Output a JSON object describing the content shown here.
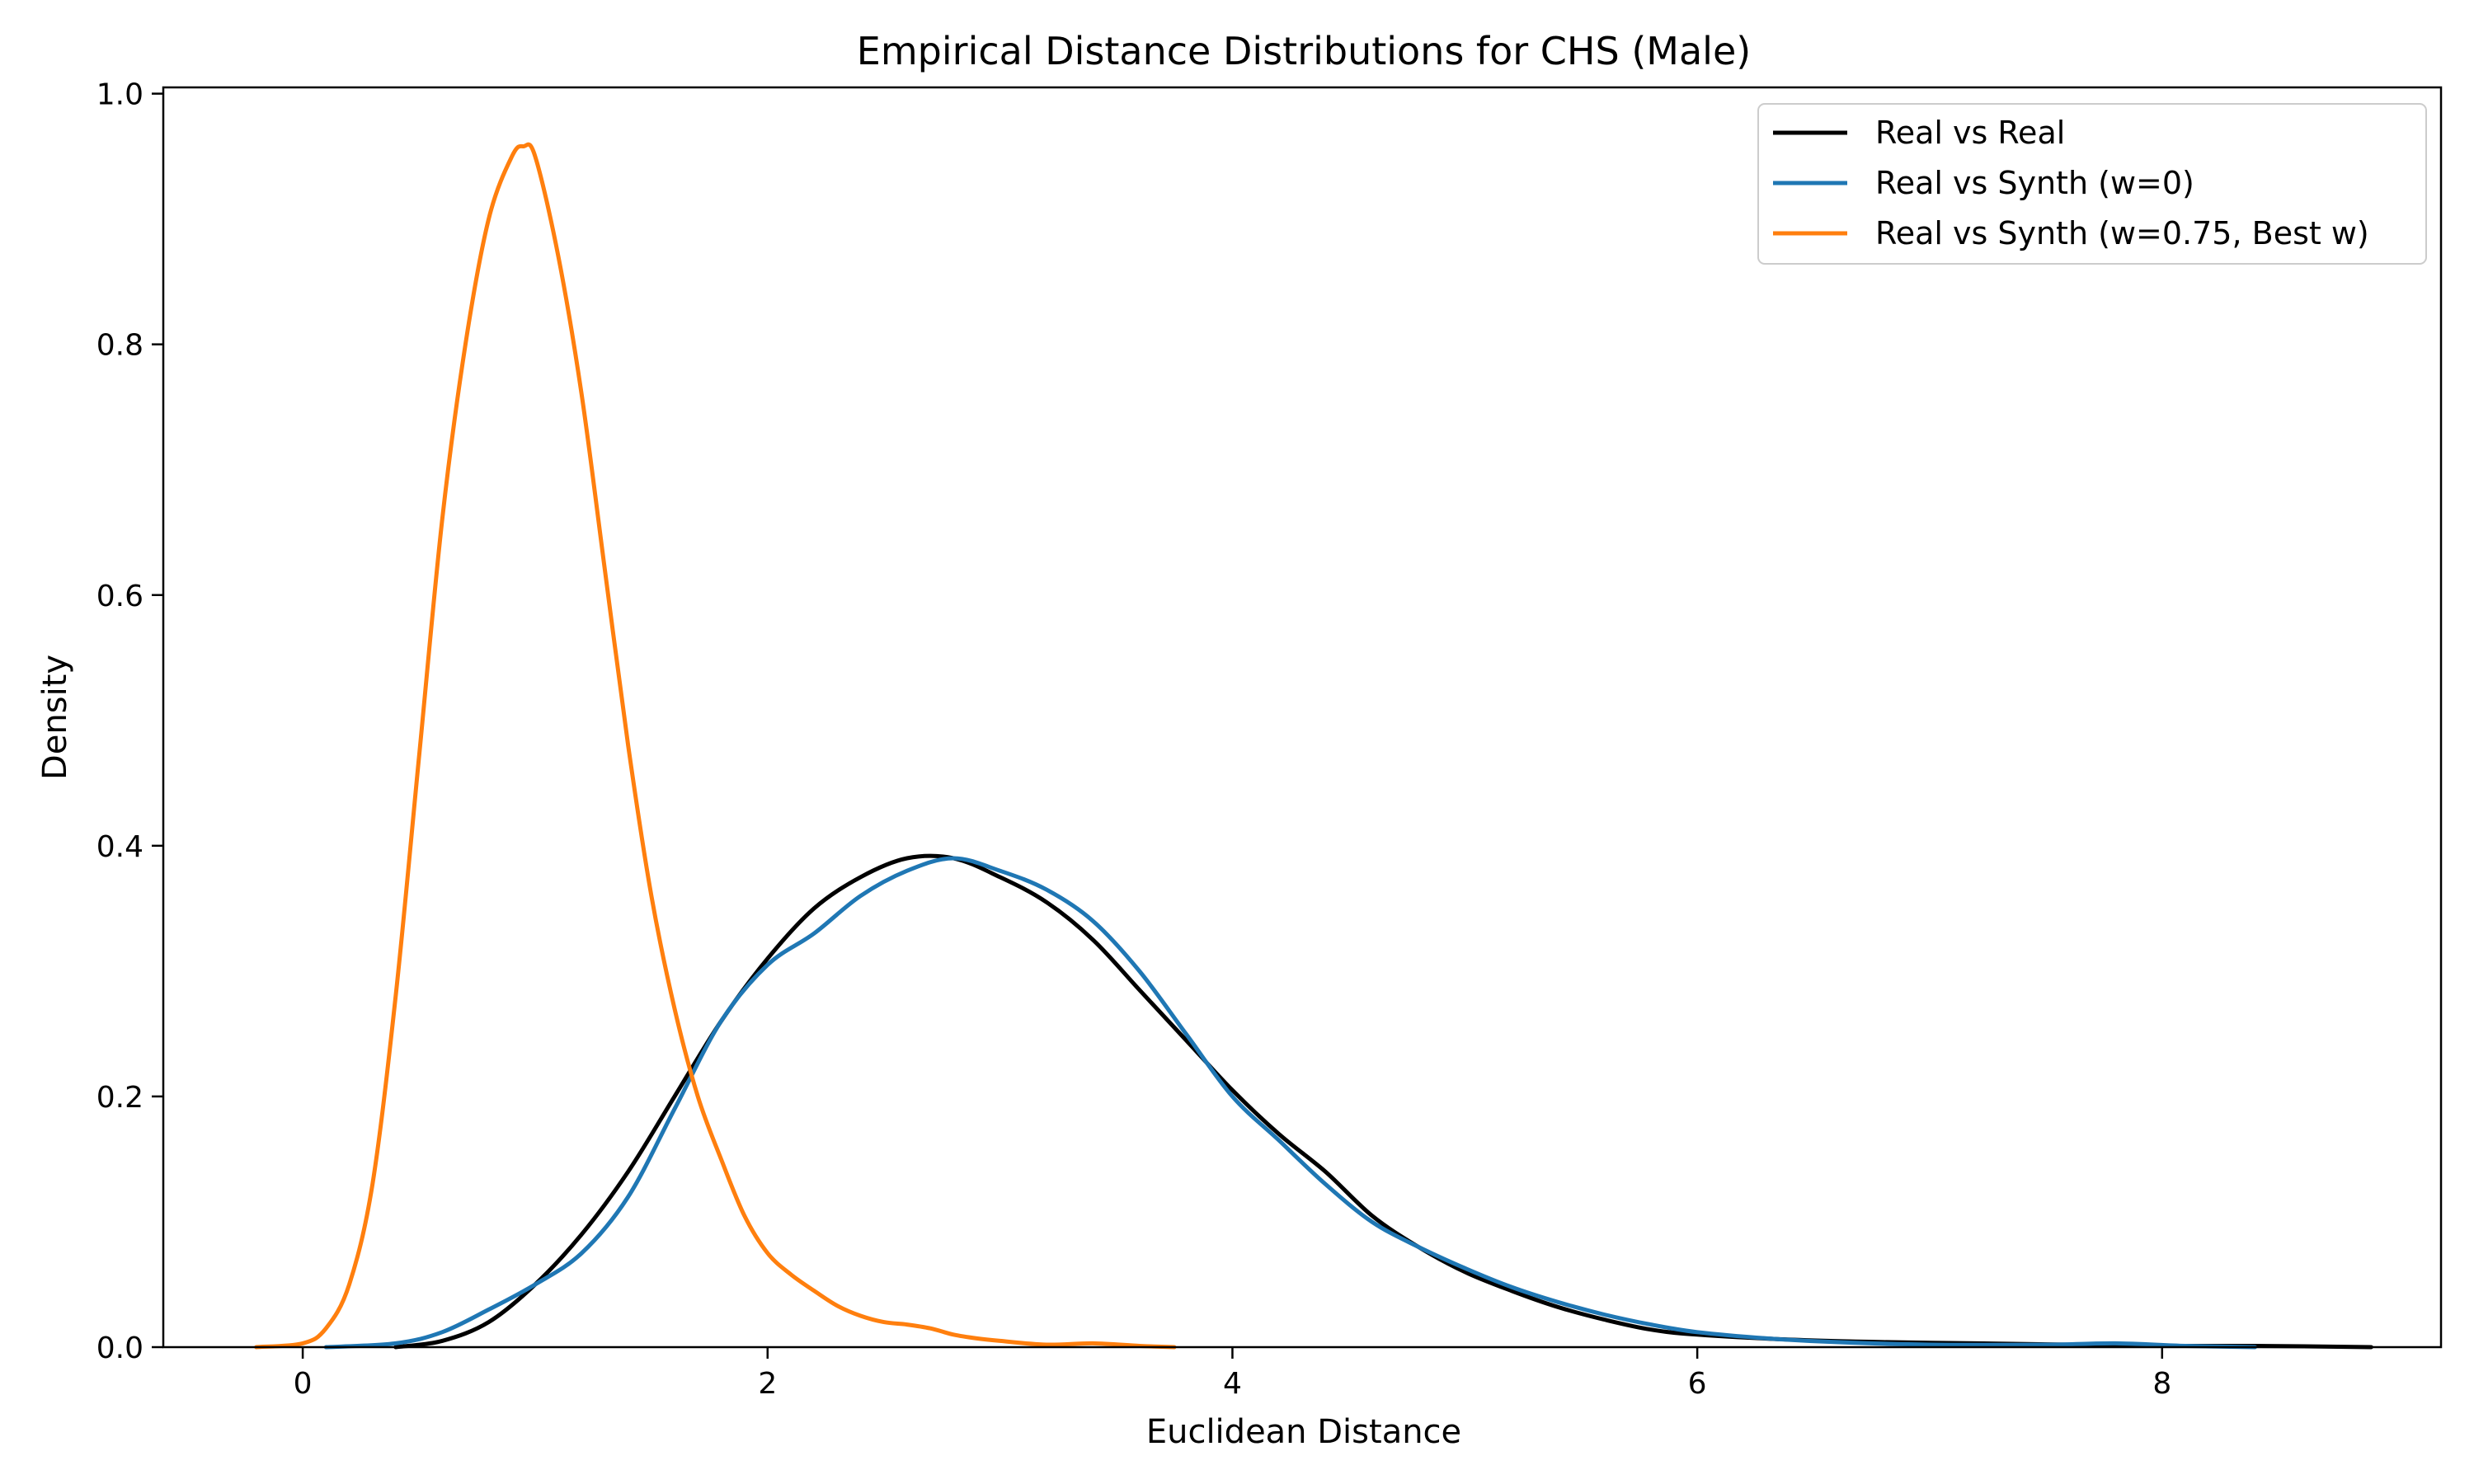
{
  "chart_data": {
    "type": "line",
    "title": "Empirical Distance Distributions for CHS (Male)",
    "xlabel": "Euclidean Distance",
    "ylabel": "Density",
    "xlim": [
      -0.6,
      9.2
    ],
    "ylim": [
      0.0,
      1.005
    ],
    "xticks": [
      0,
      2,
      4,
      6,
      8
    ],
    "xtick_labels": [
      "0",
      "2",
      "4",
      "6",
      "8"
    ],
    "yticks": [
      0.0,
      0.2,
      0.4,
      0.6,
      0.8,
      1.0
    ],
    "ytick_labels": [
      "0.0",
      "0.2",
      "0.4",
      "0.6",
      "0.8",
      "1.0"
    ],
    "grid": false,
    "legend_position": "top-right",
    "series": [
      {
        "name": "Real vs Real",
        "color": "#000000",
        "x": [
          0.4,
          0.6,
          0.8,
          1.0,
          1.2,
          1.4,
          1.6,
          1.8,
          2.0,
          2.2,
          2.4,
          2.6,
          2.8,
          3.0,
          3.2,
          3.4,
          3.6,
          3.8,
          4.0,
          4.2,
          4.4,
          4.6,
          4.8,
          5.0,
          5.2,
          5.4,
          5.6,
          5.8,
          6.0,
          6.4,
          6.8,
          7.2,
          7.6,
          8.0,
          8.4,
          8.9
        ],
        "y": [
          0.0,
          0.005,
          0.02,
          0.05,
          0.09,
          0.14,
          0.2,
          0.26,
          0.31,
          0.35,
          0.375,
          0.39,
          0.39,
          0.375,
          0.355,
          0.325,
          0.285,
          0.245,
          0.205,
          0.17,
          0.14,
          0.105,
          0.08,
          0.06,
          0.045,
          0.032,
          0.022,
          0.014,
          0.01,
          0.006,
          0.004,
          0.003,
          0.002,
          0.001,
          0.001,
          0.0
        ]
      },
      {
        "name": "Real vs Synth (w=0)",
        "color": "#1f77b4",
        "x": [
          0.1,
          0.4,
          0.6,
          0.8,
          1.0,
          1.2,
          1.4,
          1.6,
          1.8,
          2.0,
          2.2,
          2.4,
          2.6,
          2.8,
          3.0,
          3.2,
          3.4,
          3.6,
          3.8,
          4.0,
          4.2,
          4.4,
          4.6,
          4.8,
          5.0,
          5.2,
          5.4,
          5.6,
          5.8,
          6.0,
          6.3,
          6.6,
          7.0,
          7.5,
          7.8,
          8.1,
          8.4
        ],
        "y": [
          0.0,
          0.003,
          0.012,
          0.03,
          0.05,
          0.075,
          0.12,
          0.19,
          0.26,
          0.305,
          0.33,
          0.36,
          0.38,
          0.39,
          0.38,
          0.365,
          0.34,
          0.3,
          0.25,
          0.2,
          0.165,
          0.13,
          0.1,
          0.08,
          0.063,
          0.048,
          0.036,
          0.026,
          0.018,
          0.012,
          0.007,
          0.004,
          0.002,
          0.002,
          0.003,
          0.001,
          0.0
        ]
      },
      {
        "name": "Real vs Synth (w=0.75, Best w)",
        "color": "#ff7f0e",
        "x": [
          -0.2,
          0.0,
          0.1,
          0.2,
          0.3,
          0.4,
          0.5,
          0.6,
          0.7,
          0.8,
          0.9,
          0.95,
          1.0,
          1.1,
          1.2,
          1.3,
          1.4,
          1.5,
          1.6,
          1.7,
          1.8,
          1.9,
          2.0,
          2.1,
          2.2,
          2.3,
          2.4,
          2.5,
          2.6,
          2.7,
          2.8,
          2.9,
          3.0,
          3.2,
          3.4,
          3.6,
          3.75
        ],
        "y": [
          0.0,
          0.003,
          0.015,
          0.05,
          0.13,
          0.28,
          0.47,
          0.66,
          0.8,
          0.9,
          0.95,
          0.958,
          0.95,
          0.87,
          0.76,
          0.62,
          0.48,
          0.36,
          0.27,
          0.2,
          0.15,
          0.105,
          0.075,
          0.058,
          0.045,
          0.033,
          0.025,
          0.02,
          0.018,
          0.015,
          0.01,
          0.007,
          0.005,
          0.002,
          0.003,
          0.001,
          0.0
        ]
      }
    ]
  }
}
